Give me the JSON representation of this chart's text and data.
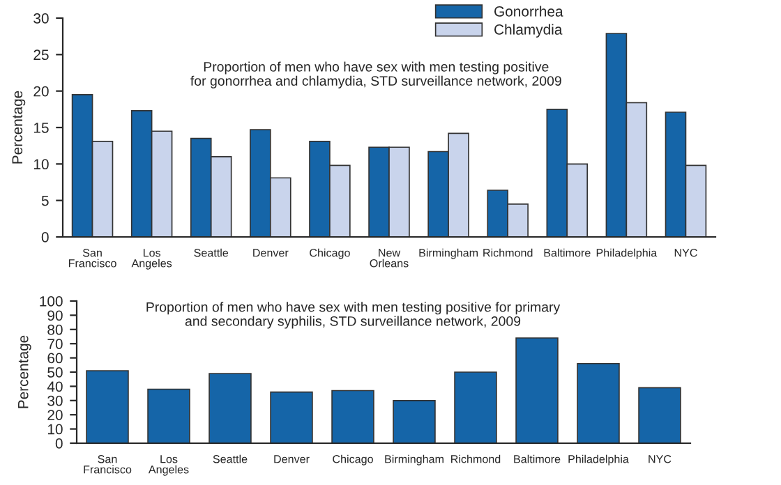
{
  "chart_data": [
    {
      "type": "bar",
      "title": "Proportion of men who have sex with men testing positive\nfor gonorrhea and chlamydia, STD surveillance network, 2009",
      "ylabel": "Percentage",
      "categories": [
        "San\nFrancisco",
        "Los\nAngeles",
        "Seattle",
        "Denver",
        "Chicago",
        "New\nOrleans",
        "Birmingham",
        "Richmond",
        "Baltimore",
        "Philadelphia",
        "NYC"
      ],
      "series": [
        {
          "name": "Gonorrhea",
          "color": "#1565a8",
          "values": [
            19.5,
            17.3,
            13.5,
            14.7,
            13.1,
            12.3,
            11.7,
            6.4,
            17.5,
            27.9,
            17.1
          ]
        },
        {
          "name": "Chlamydia",
          "color": "#c9d4ec",
          "values": [
            13.1,
            14.5,
            11.0,
            8.1,
            9.8,
            12.3,
            14.2,
            4.5,
            10.0,
            18.4,
            9.8
          ]
        }
      ],
      "ylim": [
        0,
        30
      ],
      "yticks": [
        0,
        5,
        10,
        15,
        20,
        25,
        30
      ],
      "legend": "top right",
      "grid": false
    },
    {
      "type": "bar",
      "title": "Proportion of men who have sex with men testing positive for primary\nand secondary syphilis, STD surveillance network, 2009",
      "ylabel": "Percentage",
      "categories": [
        "San\nFrancisco",
        "Los\nAngeles",
        "Seattle",
        "Denver",
        "Chicago",
        "Birmingham",
        "Richmond",
        "Baltimore",
        "Philadelphia",
        "NYC"
      ],
      "values": [
        51,
        38,
        49,
        36,
        37,
        30,
        50,
        74,
        56,
        39
      ],
      "color": "#1565a8",
      "ylim": [
        0,
        100
      ],
      "yticks": [
        0,
        10,
        20,
        30,
        40,
        50,
        60,
        70,
        80,
        90,
        100
      ],
      "grid": false
    }
  ]
}
